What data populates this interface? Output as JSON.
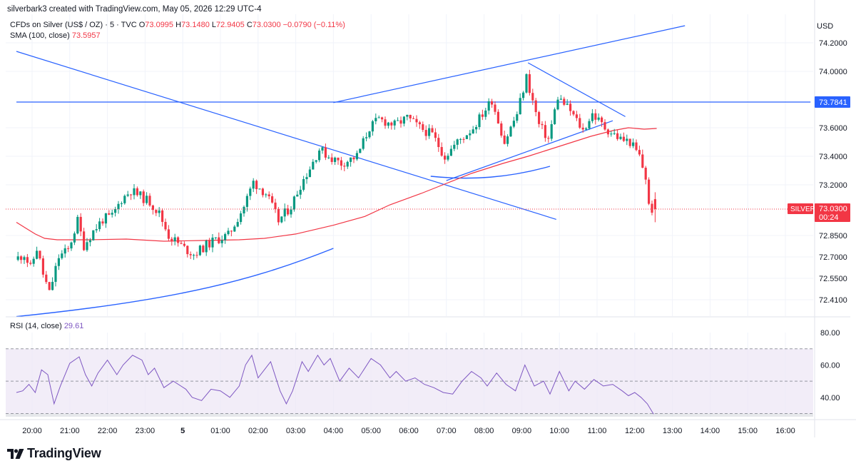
{
  "header": {
    "attribution": "silverbark3 created with TradingView.com, May 05, 2026 12:29 UTC-4"
  },
  "symbol_bar": {
    "name": "CFDs on Silver (US$ / OZ) · 5 · TVC",
    "o_label": "O",
    "o": "73.0995",
    "h_label": "H",
    "h": "73.1480",
    "l_label": "L",
    "l": "72.9405",
    "c_label": "C",
    "c": "73.0300",
    "change": "−0.0790 (−0.11%)"
  },
  "sma": {
    "label": "SMA (100, close)",
    "value": "73.5957"
  },
  "rsi": {
    "label": "RSI (14, close)",
    "value": "29.61"
  },
  "currency": "USD",
  "price_axis": {
    "ticks": [
      "74.2000",
      "74.0000",
      "73.6000",
      "73.4000",
      "73.2000",
      "72.8500",
      "72.7000",
      "72.5500",
      "72.4100"
    ]
  },
  "rsi_axis": {
    "ticks": [
      "80.00",
      "60.00",
      "40.00"
    ]
  },
  "time_axis": {
    "ticks": [
      "20:00",
      "21:00",
      "22:00",
      "23:00",
      "5",
      "01:00",
      "02:00",
      "03:00",
      "04:00",
      "05:00",
      "06:00",
      "07:00",
      "08:00",
      "09:00",
      "10:00",
      "11:00",
      "12:00",
      "13:00",
      "14:00",
      "15:00",
      "16:00"
    ]
  },
  "labels": {
    "hline_price": "73.7841",
    "symbol_tag": "SILVER",
    "last_price": "73.0300",
    "countdown": "00:24"
  },
  "colors": {
    "up": "#089981",
    "down": "#f23645",
    "sma": "#f23645",
    "drawing": "#2962ff",
    "rsi": "#7e57c2",
    "rsi_band": "#ede7f6"
  },
  "logo_text": "TradingView",
  "chart_data": [
    {
      "type": "candlestick",
      "title": "CFDs on Silver (US$ / OZ) · 5 · TVC",
      "x_range": [
        "19:35",
        "16:40"
      ],
      "price_scale": "non-linear",
      "knots": [
        {
          "price": 74.2,
          "label": "74.2000"
        },
        {
          "price": 74.0,
          "label": "74.0000"
        },
        {
          "price": 73.7841,
          "label": "73.7841"
        },
        {
          "price": 73.6,
          "label": "73.6000"
        },
        {
          "price": 73.4,
          "label": "73.4000"
        },
        {
          "price": 73.2,
          "label": "73.2000"
        },
        {
          "price": 73.03,
          "label": "73.0300"
        },
        {
          "price": 72.85,
          "label": "72.8500"
        },
        {
          "price": 72.7,
          "label": "72.7000"
        },
        {
          "price": 72.55,
          "label": "72.5500"
        },
        {
          "price": 72.41,
          "label": "72.4100"
        }
      ],
      "path": [
        [
          "19:35",
          72.68
        ],
        [
          "19:50",
          72.72
        ],
        [
          "20:00",
          72.62
        ],
        [
          "20:10",
          72.76
        ],
        [
          "20:20",
          72.58
        ],
        [
          "20:30",
          72.45
        ],
        [
          "20:45",
          72.7
        ],
        [
          "21:00",
          72.75
        ],
        [
          "21:15",
          72.95
        ],
        [
          "21:25",
          72.78
        ],
        [
          "21:40",
          72.88
        ],
        [
          "21:55",
          72.96
        ],
        [
          "22:10",
          72.98
        ],
        [
          "22:25",
          73.1
        ],
        [
          "22:40",
          73.16
        ],
        [
          "22:55",
          73.12
        ],
        [
          "23:10",
          73.08
        ],
        [
          "23:25",
          73.0
        ],
        [
          "23:40",
          72.85
        ],
        [
          "00:05",
          72.76
        ],
        [
          "00:20",
          72.72
        ],
        [
          "00:40",
          72.78
        ],
        [
          "00:55",
          72.82
        ],
        [
          "01:15",
          72.85
        ],
        [
          "01:40",
          73.05
        ],
        [
          "01:55",
          73.22
        ],
        [
          "02:15",
          73.14
        ],
        [
          "02:35",
          72.95
        ],
        [
          "02:55",
          73.05
        ],
        [
          "03:10",
          73.2
        ],
        [
          "03:25",
          73.32
        ],
        [
          "03:40",
          73.45
        ],
        [
          "03:55",
          73.4
        ],
        [
          "04:15",
          73.35
        ],
        [
          "04:40",
          73.4
        ],
        [
          "05:00",
          73.6
        ],
        [
          "05:15",
          73.66
        ],
        [
          "05:40",
          73.62
        ],
        [
          "06:00",
          73.67
        ],
        [
          "06:20",
          73.6
        ],
        [
          "06:40",
          73.55
        ],
        [
          "07:00",
          73.4
        ],
        [
          "07:20",
          73.5
        ],
        [
          "07:45",
          73.6
        ],
        [
          "08:00",
          73.7
        ],
        [
          "08:15",
          73.8
        ],
        [
          "08:35",
          73.5
        ],
        [
          "08:55",
          73.7
        ],
        [
          "09:10",
          73.96
        ],
        [
          "09:30",
          73.62
        ],
        [
          "09:45",
          73.52
        ],
        [
          "10:00",
          73.82
        ],
        [
          "10:20",
          73.72
        ],
        [
          "10:40",
          73.58
        ],
        [
          "10:55",
          73.7
        ],
        [
          "11:15",
          73.6
        ],
        [
          "11:40",
          73.52
        ],
        [
          "11:55",
          73.5
        ],
        [
          "12:10",
          73.4
        ],
        [
          "12:20",
          73.25
        ],
        [
          "12:25",
          73.05
        ],
        [
          "12:30",
          73.03
        ]
      ],
      "last": {
        "open": 73.0995,
        "high": 73.148,
        "low": 72.9405,
        "close": 73.03,
        "change": -0.079,
        "change_pct": -0.11
      },
      "series": [
        {
          "name": "SMA (100, close)",
          "points": [
            [
              "19:35",
              72.94
            ],
            [
              "19:50",
              72.9
            ],
            [
              "20:05",
              72.86
            ],
            [
              "20:20",
              72.83
            ],
            [
              "20:40",
              72.82
            ],
            [
              "21:30",
              72.82
            ],
            [
              "22:30",
              72.825
            ],
            [
              "23:30",
              72.81
            ],
            [
              "00:30",
              72.815
            ],
            [
              "01:30",
              72.82
            ],
            [
              "02:10",
              72.83
            ],
            [
              "03:00",
              72.86
            ],
            [
              "04:00",
              72.92
            ],
            [
              "04:50",
              72.98
            ],
            [
              "05:30",
              73.06
            ],
            [
              "06:20",
              73.14
            ],
            [
              "07:00",
              73.21
            ],
            [
              "07:40",
              73.28
            ],
            [
              "08:30",
              73.35
            ],
            [
              "09:10",
              73.4
            ],
            [
              "10:00",
              73.47
            ],
            [
              "10:50",
              73.54
            ],
            [
              "11:25",
              73.58
            ],
            [
              "11:50",
              73.6
            ],
            [
              "12:15",
              73.59
            ],
            [
              "12:35",
              73.595
            ]
          ]
        }
      ],
      "drawings": [
        {
          "name": "upper-channel-line",
          "from": [
            "04:00",
            73.78
          ],
          "to": [
            "13:20",
            74.32
          ]
        },
        {
          "name": "descending-trendline",
          "from": [
            "19:35",
            74.14
          ],
          "to": [
            "09:55",
            72.96
          ]
        },
        {
          "name": "horizontal-level",
          "from": [
            "19:35",
            73.7841
          ],
          "to": [
            "16:40",
            73.7841
          ]
        },
        {
          "name": "local-trendline",
          "from": [
            "09:10",
            74.06
          ],
          "to": [
            "11:45",
            73.68
          ]
        },
        {
          "name": "mini-uptrend",
          "from": [
            "07:00",
            73.23
          ],
          "to": [
            "11:25",
            73.65
          ]
        },
        {
          "name": "lower-arc",
          "points": [
            [
              "19:35",
              72.3
            ],
            [
              "00:00",
              72.41
            ],
            [
              "02:00",
              72.55
            ],
            [
              "04:00",
              72.76
            ]
          ]
        },
        {
          "name": "right-arc",
          "points": [
            [
              "06:35",
              73.26
            ],
            [
              "07:40",
              73.23
            ],
            [
              "08:40",
              73.25
            ],
            [
              "09:45",
              73.33
            ]
          ]
        }
      ]
    },
    {
      "type": "line",
      "title": "RSI (14, close)",
      "ylim": [
        28,
        80
      ],
      "band": [
        30,
        70
      ],
      "midline": 50,
      "last_value": 29.61,
      "series": [
        {
          "name": "RSI (14, close)",
          "points": [
            [
              "19:35",
              43
            ],
            [
              "19:45",
              44
            ],
            [
              "19:55",
              48
            ],
            [
              "20:05",
              43
            ],
            [
              "20:15",
              57
            ],
            [
              "20:25",
              54
            ],
            [
              "20:35",
              36
            ],
            [
              "20:45",
              47
            ],
            [
              "21:00",
              61
            ],
            [
              "21:15",
              65
            ],
            [
              "21:25",
              54
            ],
            [
              "21:35",
              47
            ],
            [
              "21:45",
              55
            ],
            [
              "22:00",
              63
            ],
            [
              "22:15",
              54
            ],
            [
              "22:25",
              60
            ],
            [
              "22:40",
              66
            ],
            [
              "22:55",
              63
            ],
            [
              "23:05",
              54
            ],
            [
              "23:15",
              58
            ],
            [
              "23:30",
              46
            ],
            [
              "23:45",
              50
            ],
            [
              "00:05",
              45
            ],
            [
              "00:15",
              40
            ],
            [
              "00:30",
              38
            ],
            [
              "00:45",
              45
            ],
            [
              "01:00",
              44
            ],
            [
              "01:15",
              40
            ],
            [
              "01:30",
              47
            ],
            [
              "01:40",
              60
            ],
            [
              "01:50",
              66
            ],
            [
              "02:00",
              52
            ],
            [
              "02:20",
              62
            ],
            [
              "02:35",
              44
            ],
            [
              "02:45",
              36
            ],
            [
              "02:55",
              44
            ],
            [
              "03:10",
              62
            ],
            [
              "03:20",
              56
            ],
            [
              "03:35",
              66
            ],
            [
              "03:45",
              60
            ],
            [
              "03:55",
              64
            ],
            [
              "04:10",
              50
            ],
            [
              "04:25",
              58
            ],
            [
              "04:40",
              52
            ],
            [
              "05:00",
              64
            ],
            [
              "05:15",
              60
            ],
            [
              "05:30",
              52
            ],
            [
              "05:40",
              56
            ],
            [
              "05:55",
              50
            ],
            [
              "06:10",
              52
            ],
            [
              "06:25",
              48
            ],
            [
              "06:40",
              46
            ],
            [
              "06:55",
              43
            ],
            [
              "07:10",
              42
            ],
            [
              "07:25",
              50
            ],
            [
              "07:40",
              56
            ],
            [
              "07:55",
              52
            ],
            [
              "08:05",
              47
            ],
            [
              "08:20",
              55
            ],
            [
              "08:35",
              48
            ],
            [
              "08:50",
              44
            ],
            [
              "09:05",
              60
            ],
            [
              "09:20",
              47
            ],
            [
              "09:35",
              50
            ],
            [
              "09:45",
              42
            ],
            [
              "10:00",
              56
            ],
            [
              "10:15",
              44
            ],
            [
              "10:25",
              50
            ],
            [
              "10:40",
              45
            ],
            [
              "10:55",
              51
            ],
            [
              "11:10",
              47
            ],
            [
              "11:25",
              48
            ],
            [
              "11:40",
              44
            ],
            [
              "11:50",
              41
            ],
            [
              "12:00",
              43
            ],
            [
              "12:10",
              40
            ],
            [
              "12:20",
              36
            ],
            [
              "12:30",
              29.61
            ]
          ]
        }
      ]
    }
  ]
}
